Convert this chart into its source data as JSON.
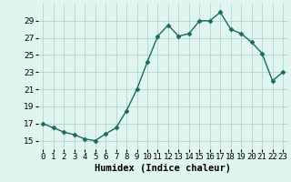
{
  "xlabel": "Humidex (Indice chaleur)",
  "hours": [
    0,
    1,
    2,
    3,
    4,
    5,
    6,
    7,
    8,
    9,
    10,
    11,
    12,
    13,
    14,
    15,
    16,
    17,
    18,
    19,
    20,
    21,
    22,
    23
  ],
  "values": [
    17.0,
    16.5,
    16.0,
    15.7,
    15.2,
    15.0,
    15.8,
    16.5,
    18.5,
    21.0,
    24.2,
    27.2,
    28.5,
    27.2,
    27.5,
    29.0,
    29.0,
    30.0,
    28.0,
    27.5,
    26.5,
    25.2,
    22.0,
    23.0
  ],
  "line_color": "#1a6b5a",
  "marker": "D",
  "marker_size": 2.5,
  "bg_color": "#e0f5ef",
  "grid_color": "#a8cfc4",
  "ylim": [
    14.0,
    31.0
  ],
  "yticks": [
    15,
    17,
    19,
    21,
    23,
    25,
    27,
    29
  ],
  "xlim": [
    -0.5,
    23.5
  ],
  "tick_fontsize": 6.5,
  "label_fontsize": 7.5,
  "linewidth": 1.0
}
